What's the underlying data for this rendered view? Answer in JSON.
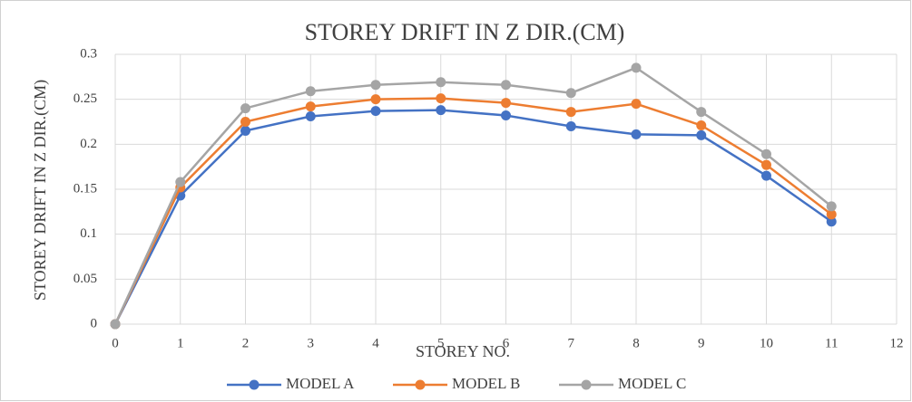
{
  "chart_data": {
    "type": "line",
    "title": "STOREY DRIFT IN Z DIR.(CM)",
    "x_label": "STOREY NO.",
    "y_label": "STOREY DRIFT IN Z DIR.(CM)",
    "x": [
      0,
      1,
      2,
      3,
      4,
      5,
      6,
      7,
      8,
      9,
      10,
      11
    ],
    "series": [
      {
        "name": "MODEL A",
        "color": "#4472c4",
        "values": [
          0,
          0.143,
          0.215,
          0.231,
          0.237,
          0.238,
          0.232,
          0.22,
          0.211,
          0.21,
          0.165,
          0.114
        ]
      },
      {
        "name": "MODEL B",
        "color": "#ed7d31",
        "values": [
          0,
          0.152,
          0.225,
          0.242,
          0.25,
          0.251,
          0.246,
          0.236,
          0.245,
          0.221,
          0.177,
          0.122
        ]
      },
      {
        "name": "MODEL C",
        "color": "#a5a5a5",
        "values": [
          0,
          0.158,
          0.24,
          0.259,
          0.266,
          0.269,
          0.266,
          0.257,
          0.285,
          0.236,
          0.189,
          0.131
        ]
      }
    ],
    "xlim": [
      0,
      12
    ],
    "xticks": [
      0,
      1,
      2,
      3,
      4,
      5,
      6,
      7,
      8,
      9,
      10,
      11,
      12
    ],
    "ylim": [
      0,
      0.3
    ],
    "yticks": [
      0,
      0.05,
      0.1,
      0.15,
      0.2,
      0.25,
      0.3
    ],
    "grid": true,
    "legend": "bottom"
  }
}
